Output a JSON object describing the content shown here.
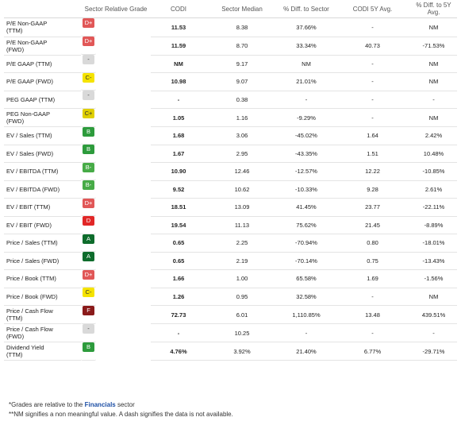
{
  "columns": [
    "",
    "Sector Relative Grade",
    "CODI",
    "Sector Median",
    "% Diff. to Sector",
    "CODI 5Y Avg.",
    "% Diff. to 5Y Avg."
  ],
  "grade_colors": {
    "D+": "#e15757",
    "D": "#e12727",
    "F": "#8a1a1a",
    "C-": "#f5e300",
    "C+": "#dfcf00",
    "B": "#2d9b3c",
    "B-": "#47ab47",
    "A": "#0e6c2c",
    "-": "#d9d9d9"
  },
  "rows": [
    {
      "metric": "P/E Non-GAAP\n(TTM)",
      "grade": "D+",
      "codi": "11.53",
      "median": "8.38",
      "diff_sector": "37.66%",
      "avg5y": "-",
      "diff_5y": "NM"
    },
    {
      "metric": "P/E Non-GAAP\n(FWD)",
      "grade": "D+",
      "codi": "11.59",
      "median": "8.70",
      "diff_sector": "33.34%",
      "avg5y": "40.73",
      "diff_5y": "-71.53%"
    },
    {
      "metric": "P/E GAAP (TTM)",
      "grade": "-",
      "codi": "NM",
      "median": "9.17",
      "diff_sector": "NM",
      "avg5y": "-",
      "diff_5y": "NM"
    },
    {
      "metric": "P/E GAAP (FWD)",
      "grade": "C-",
      "codi": "10.98",
      "median": "9.07",
      "diff_sector": "21.01%",
      "avg5y": "-",
      "diff_5y": "NM"
    },
    {
      "metric": "PEG GAAP (TTM)",
      "grade": "-",
      "codi": "-",
      "median": "0.38",
      "diff_sector": "-",
      "avg5y": "-",
      "diff_5y": "-"
    },
    {
      "metric": "PEG Non-GAAP\n(FWD)",
      "grade": "C+",
      "codi": "1.05",
      "median": "1.16",
      "diff_sector": "-9.29%",
      "avg5y": "-",
      "diff_5y": "NM"
    },
    {
      "metric": "EV / Sales (TTM)",
      "grade": "B",
      "codi": "1.68",
      "median": "3.06",
      "diff_sector": "-45.02%",
      "avg5y": "1.64",
      "diff_5y": "2.42%"
    },
    {
      "metric": "EV / Sales (FWD)",
      "grade": "B",
      "codi": "1.67",
      "median": "2.95",
      "diff_sector": "-43.35%",
      "avg5y": "1.51",
      "diff_5y": "10.48%"
    },
    {
      "metric": "EV / EBITDA (TTM)",
      "grade": "B-",
      "codi": "10.90",
      "median": "12.46",
      "diff_sector": "-12.57%",
      "avg5y": "12.22",
      "diff_5y": "-10.85%"
    },
    {
      "metric": "EV / EBITDA (FWD)",
      "grade": "B-",
      "codi": "9.52",
      "median": "10.62",
      "diff_sector": "-10.33%",
      "avg5y": "9.28",
      "diff_5y": "2.61%"
    },
    {
      "metric": "EV / EBIT (TTM)",
      "grade": "D+",
      "codi": "18.51",
      "median": "13.09",
      "diff_sector": "41.45%",
      "avg5y": "23.77",
      "diff_5y": "-22.11%"
    },
    {
      "metric": "EV / EBIT (FWD)",
      "grade": "D",
      "codi": "19.54",
      "median": "11.13",
      "diff_sector": "75.62%",
      "avg5y": "21.45",
      "diff_5y": "-8.89%"
    },
    {
      "metric": "Price / Sales (TTM)",
      "grade": "A",
      "codi": "0.65",
      "median": "2.25",
      "diff_sector": "-70.94%",
      "avg5y": "0.80",
      "diff_5y": "-18.01%"
    },
    {
      "metric": "Price / Sales (FWD)",
      "grade": "A",
      "codi": "0.65",
      "median": "2.19",
      "diff_sector": "-70.14%",
      "avg5y": "0.75",
      "diff_5y": "-13.43%"
    },
    {
      "metric": "Price / Book (TTM)",
      "grade": "D+",
      "codi": "1.66",
      "median": "1.00",
      "diff_sector": "65.58%",
      "avg5y": "1.69",
      "diff_5y": "-1.56%"
    },
    {
      "metric": "Price / Book (FWD)",
      "grade": "C-",
      "codi": "1.26",
      "median": "0.95",
      "diff_sector": "32.58%",
      "avg5y": "-",
      "diff_5y": "NM"
    },
    {
      "metric": "Price / Cash Flow\n(TTM)",
      "grade": "F",
      "codi": "72.73",
      "median": "6.01",
      "diff_sector": "1,110.85%",
      "avg5y": "13.48",
      "diff_5y": "439.51%"
    },
    {
      "metric": "Price / Cash Flow\n(FWD)",
      "grade": "-",
      "codi": "-",
      "median": "10.25",
      "diff_sector": "-",
      "avg5y": "-",
      "diff_5y": "-"
    },
    {
      "metric": "Dividend Yield\n(TTM)",
      "grade": "B",
      "codi": "4.76%",
      "median": "3.92%",
      "diff_sector": "21.40%",
      "avg5y": "6.77%",
      "diff_5y": "-29.71%"
    }
  ],
  "footer": {
    "line1_prefix": "*Grades are relative to the ",
    "sector": "Financials",
    "line1_suffix": " sector",
    "line2": "**NM signifies a non meaningful value. A dash signifies the data is not available."
  }
}
